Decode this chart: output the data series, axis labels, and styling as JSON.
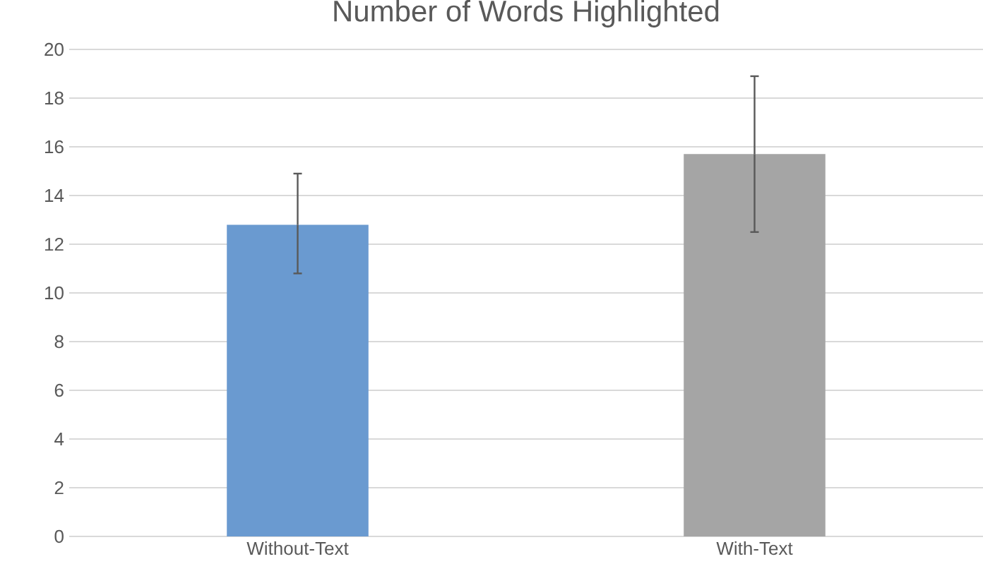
{
  "chart_data": {
    "type": "bar",
    "title": "Number of Words Highlighted",
    "categories": [
      "Without-Text",
      "With-Text"
    ],
    "values": [
      12.8,
      15.7
    ],
    "colors": [
      "#6a9ad0",
      "#a5a5a5"
    ],
    "errors": [
      [
        10.8,
        14.9
      ],
      [
        12.5,
        18.9
      ]
    ],
    "ylim": [
      0,
      20
    ],
    "yticks": [
      0,
      2,
      4,
      6,
      8,
      10,
      12,
      14,
      16,
      18,
      20
    ],
    "grid": "y"
  }
}
